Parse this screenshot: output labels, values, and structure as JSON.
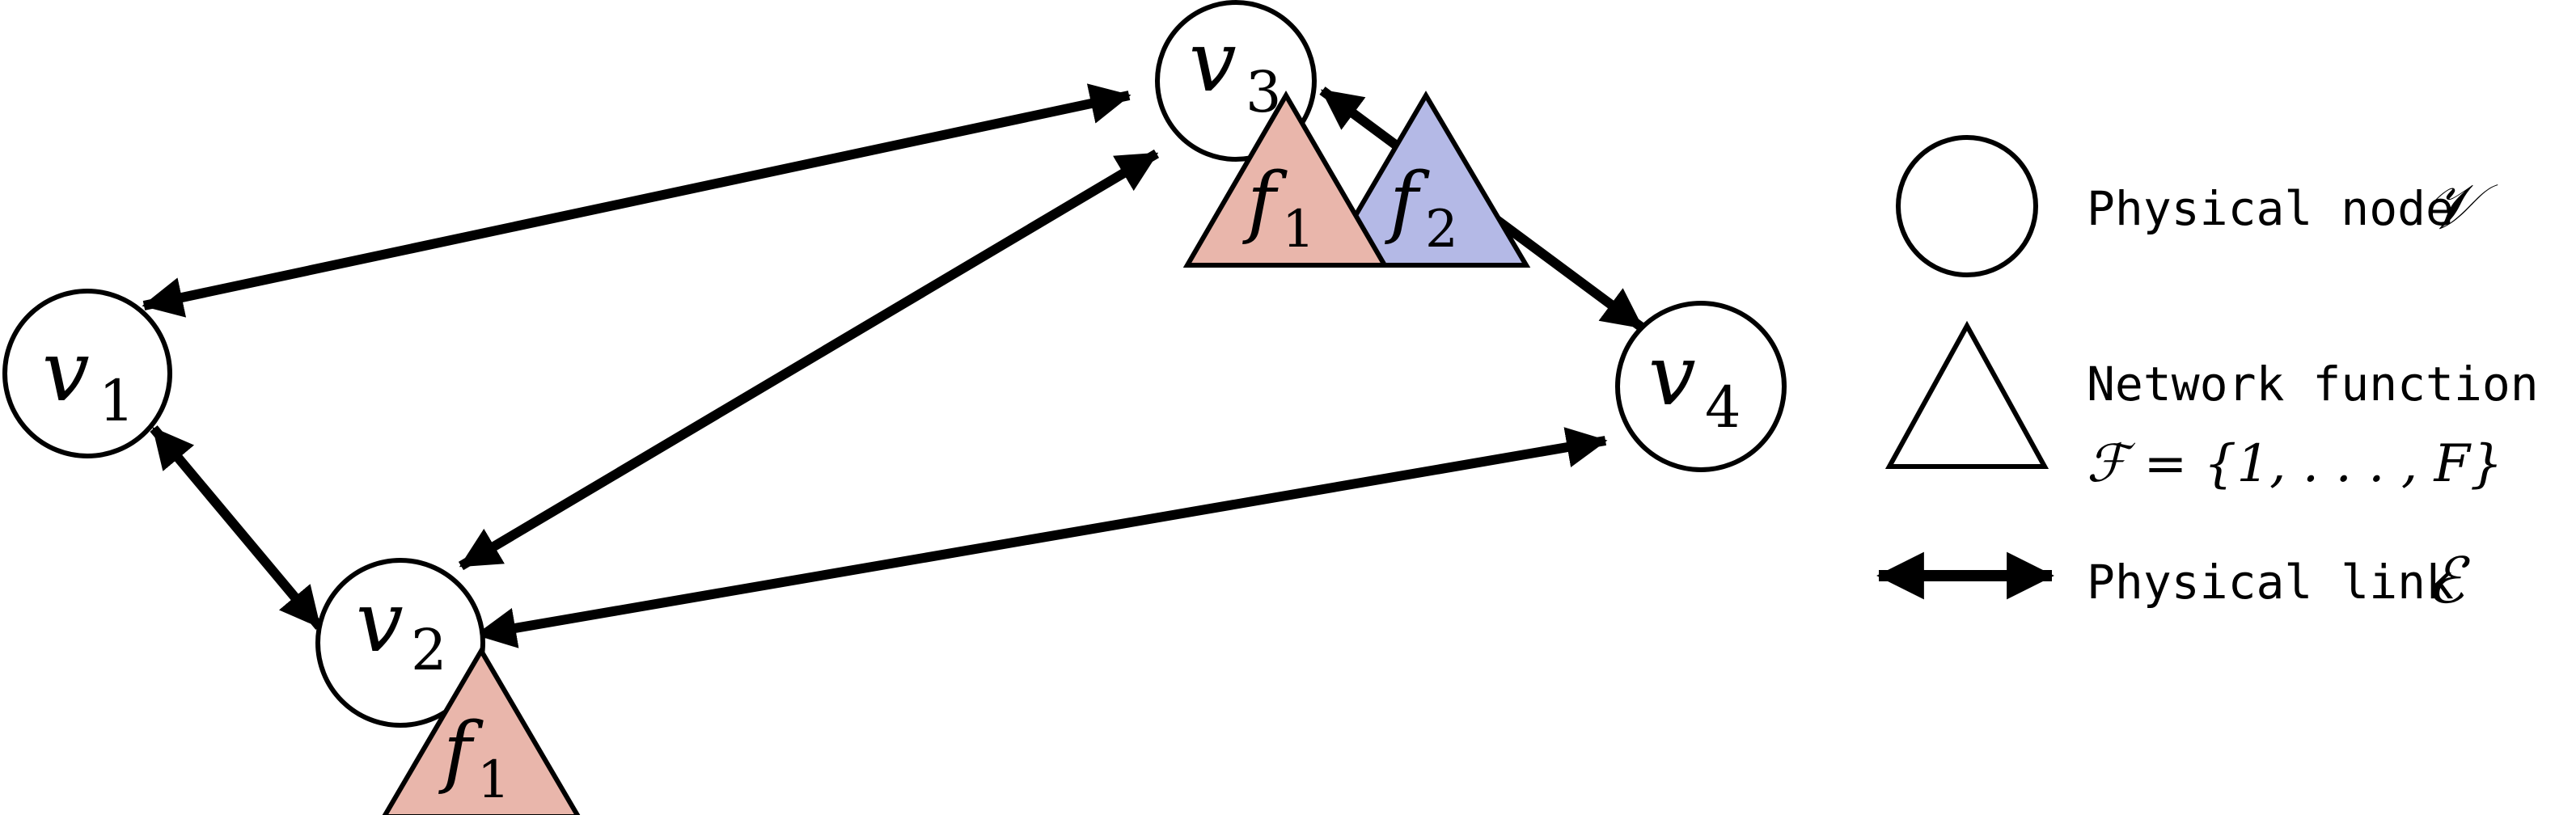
{
  "nodes": [
    {
      "id": "v1",
      "base": "v",
      "sub": "1"
    },
    {
      "id": "v2",
      "base": "v",
      "sub": "2"
    },
    {
      "id": "v3",
      "base": "v",
      "sub": "3"
    },
    {
      "id": "v4",
      "base": "v",
      "sub": "4"
    }
  ],
  "functions": [
    {
      "id": "f1_v2",
      "base": "f",
      "sub": "1",
      "node": "v2",
      "color": "#e9b6ab"
    },
    {
      "id": "f1_v3",
      "base": "f",
      "sub": "1",
      "node": "v3",
      "color": "#e9b6ab"
    },
    {
      "id": "f2_v3",
      "base": "f",
      "sub": "2",
      "node": "v3",
      "color": "#b4b9e6"
    }
  ],
  "links": [
    {
      "from": "v1",
      "to": "v3"
    },
    {
      "from": "v1",
      "to": "v2"
    },
    {
      "from": "v2",
      "to": "v3"
    },
    {
      "from": "v2",
      "to": "v4"
    },
    {
      "from": "v3",
      "to": "v4"
    }
  ],
  "legend": {
    "node_label": "Physical node",
    "node_symbol": "𝒱",
    "function_label": "Network function",
    "function_set": "ℱ = {1, . . . , F}",
    "link_label": "Physical link",
    "link_symbol": "ℰ"
  },
  "colors": {
    "stroke": "#000000",
    "f1_fill": "#e9b6ab",
    "f2_fill": "#b4b9e6"
  }
}
